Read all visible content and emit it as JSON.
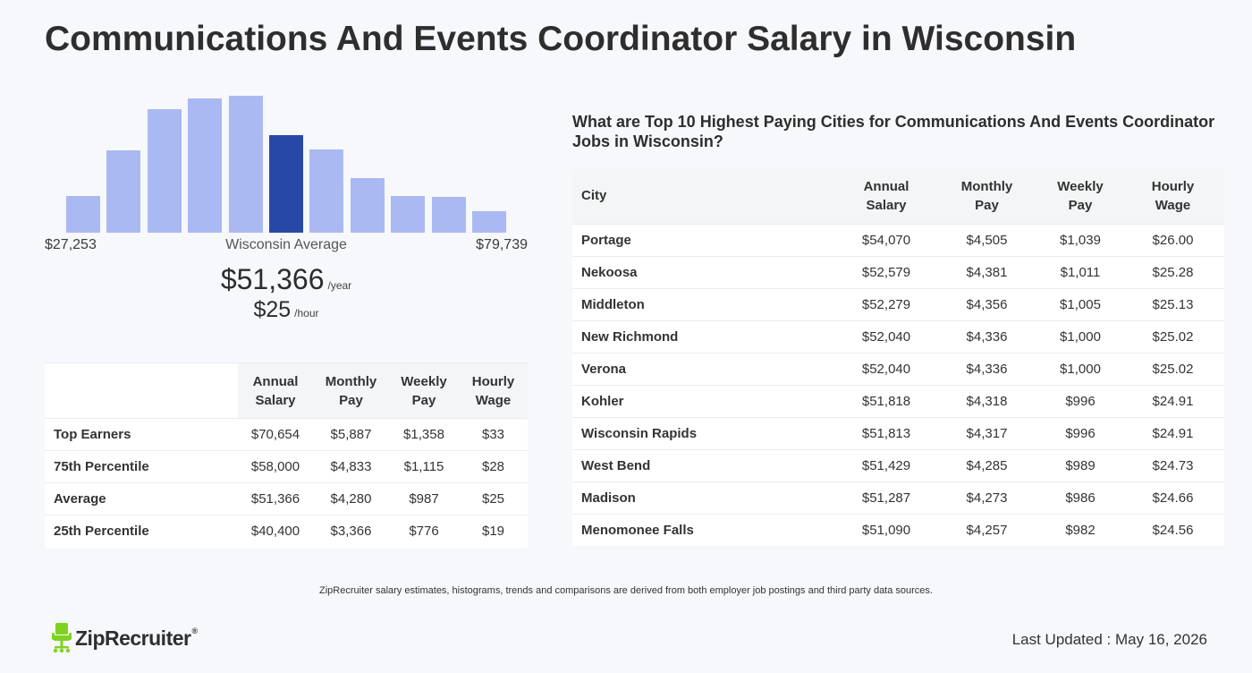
{
  "page_title": "Communications And Events Coordinator Salary in Wisconsin",
  "histogram": {
    "relative_heights": [
      0.27,
      0.6,
      0.9,
      0.98,
      1.0,
      0.71,
      0.61,
      0.4,
      0.27,
      0.26,
      0.16
    ],
    "highlight_index": 5,
    "colors": {
      "bar": "#aab9f2",
      "highlight": "#2749a5"
    },
    "min_label": "$27,253",
    "center_label": "Wisconsin Average",
    "max_label": "$79,739"
  },
  "average": {
    "annual": "$51,366",
    "annual_unit": "/year",
    "hourly": "$25",
    "hourly_unit": "/hour"
  },
  "percentile_table": {
    "headers": [
      [
        "Annual",
        "Salary"
      ],
      [
        "Monthly",
        "Pay"
      ],
      [
        "Weekly",
        "Pay"
      ],
      [
        "Hourly",
        "Wage"
      ]
    ],
    "rows": [
      {
        "label": "Top Earners",
        "values": [
          "$70,654",
          "$5,887",
          "$1,358",
          "$33"
        ]
      },
      {
        "label": "75th Percentile",
        "values": [
          "$58,000",
          "$4,833",
          "$1,115",
          "$28"
        ]
      },
      {
        "label": "Average",
        "values": [
          "$51,366",
          "$4,280",
          "$987",
          "$25"
        ]
      },
      {
        "label": "25th Percentile",
        "values": [
          "$40,400",
          "$3,366",
          "$776",
          "$19"
        ]
      }
    ]
  },
  "cities": {
    "heading": "What are Top 10 Highest Paying Cities for Communications And Events Coordinator Jobs in Wisconsin?",
    "city_header": "City",
    "headers": [
      [
        "Annual",
        "Salary"
      ],
      [
        "Monthly",
        "Pay"
      ],
      [
        "Weekly",
        "Pay"
      ],
      [
        "Hourly",
        "Wage"
      ]
    ],
    "rows": [
      {
        "city": "Portage",
        "values": [
          "$54,070",
          "$4,505",
          "$1,039",
          "$26.00"
        ]
      },
      {
        "city": "Nekoosa",
        "values": [
          "$52,579",
          "$4,381",
          "$1,011",
          "$25.28"
        ]
      },
      {
        "city": "Middleton",
        "values": [
          "$52,279",
          "$4,356",
          "$1,005",
          "$25.13"
        ]
      },
      {
        "city": "New Richmond",
        "values": [
          "$52,040",
          "$4,336",
          "$1,000",
          "$25.02"
        ]
      },
      {
        "city": "Verona",
        "values": [
          "$52,040",
          "$4,336",
          "$1,000",
          "$25.02"
        ]
      },
      {
        "city": "Kohler",
        "values": [
          "$51,818",
          "$4,318",
          "$996",
          "$24.91"
        ]
      },
      {
        "city": "Wisconsin Rapids",
        "values": [
          "$51,813",
          "$4,317",
          "$996",
          "$24.91"
        ]
      },
      {
        "city": "West Bend",
        "values": [
          "$51,429",
          "$4,285",
          "$989",
          "$24.73"
        ]
      },
      {
        "city": "Madison",
        "values": [
          "$51,287",
          "$4,273",
          "$986",
          "$24.66"
        ]
      },
      {
        "city": "Menomonee Falls",
        "values": [
          "$51,090",
          "$4,257",
          "$982",
          "$24.56"
        ]
      }
    ]
  },
  "footnote": "ZipRecruiter salary estimates, histograms, trends and comparisons are derived from both employer job postings and third party data sources.",
  "logo": {
    "text": "ZipRecruiter",
    "reg": "®",
    "icon": "zip-chair-icon",
    "icon_color": "#7ed321"
  },
  "last_updated": "Last Updated : May 16, 2026"
}
